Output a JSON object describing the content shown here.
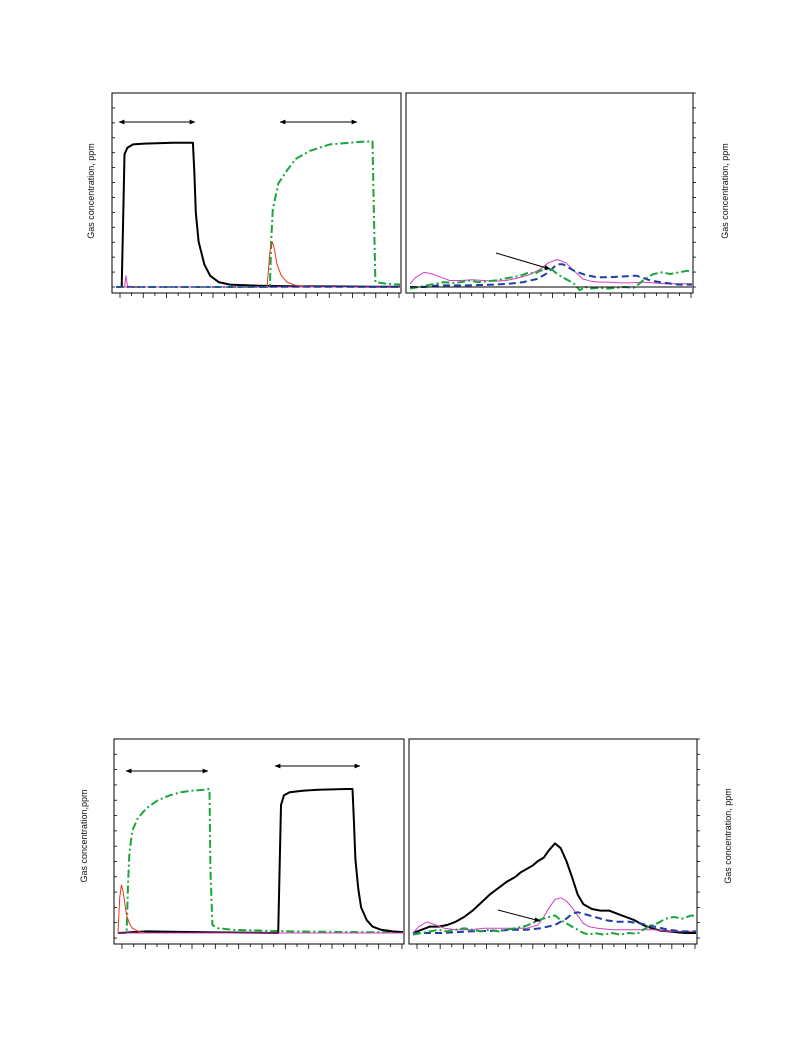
{
  "figure": {
    "ylabel_text": "Gas concentration, ppm"
  },
  "colors": {
    "black": "#000000",
    "green": "#1aa53a",
    "red": "#e8361c",
    "magenta": "#d23fbf",
    "blue": "#1f3fa8"
  },
  "chart_data": [
    {
      "type": "line",
      "panel": "top-left",
      "title": "",
      "xlabel": "",
      "ylabel": "Gas concentration, ppm",
      "xlim": [
        0,
        100
      ],
      "ylim": [
        0,
        100
      ],
      "grid": false,
      "series": [
        {
          "color": "black",
          "style": "solid",
          "width": 2,
          "x": [
            0,
            2,
            2.5,
            3,
            4,
            6,
            10,
            20,
            27,
            27.5,
            28,
            29,
            31,
            33,
            36,
            40,
            50,
            60,
            70,
            80,
            90,
            100
          ],
          "y": [
            0,
            0,
            40,
            82,
            86,
            88,
            88.5,
            89,
            89,
            70,
            46,
            28,
            14,
            7,
            3,
            1.5,
            0.8,
            0.5,
            0.4,
            0.3,
            0.2,
            0.2
          ]
        },
        {
          "color": "green",
          "style": "dashdot",
          "width": 2,
          "x": [
            0,
            10,
            20,
            30,
            40,
            54,
            54.5,
            55,
            57,
            60,
            63,
            68,
            75,
            85,
            90,
            90.5,
            91,
            95,
            100
          ],
          "y": [
            0,
            0,
            0,
            0,
            0,
            0,
            30,
            48,
            64,
            72,
            79,
            84,
            88,
            89.5,
            90,
            45,
            3,
            2,
            1.5
          ]
        },
        {
          "color": "red",
          "style": "solid",
          "width": 1,
          "x": [
            0,
            53,
            54,
            54.8,
            55.5,
            56.5,
            58,
            60,
            63,
            67,
            72,
            100
          ],
          "y": [
            0,
            0,
            22,
            28,
            24,
            14,
            7,
            3,
            1,
            0.3,
            0,
            0
          ]
        },
        {
          "color": "magenta",
          "style": "solid",
          "width": 1,
          "x": [
            0,
            3,
            3.5,
            4,
            10,
            30,
            50,
            70,
            100
          ],
          "y": [
            0,
            0,
            7,
            0.5,
            0,
            0,
            0,
            0,
            0
          ]
        },
        {
          "color": "blue",
          "style": "dashed",
          "width": 1.5,
          "x": [
            0,
            30,
            60,
            100
          ],
          "y": [
            0,
            0,
            0,
            0
          ]
        }
      ]
    },
    {
      "type": "line",
      "panel": "top-right",
      "title": "",
      "xlabel": "",
      "ylabel": "Gas concentration, ppm",
      "xlim": [
        0,
        100
      ],
      "ylim": [
        0,
        100
      ],
      "grid": false,
      "series": [
        {
          "color": "magenta",
          "style": "solid",
          "width": 1,
          "x": [
            0,
            2,
            5,
            8,
            11,
            14,
            18,
            22,
            26,
            30,
            34,
            38,
            42,
            46,
            49,
            52,
            55,
            58,
            61,
            64,
            67,
            70,
            74,
            78,
            82,
            86,
            90,
            94,
            98,
            100
          ],
          "y": [
            2,
            6,
            9,
            8,
            6,
            4,
            4,
            4.5,
            4,
            3.5,
            4,
            5.5,
            7.5,
            11,
            15,
            17,
            15,
            10,
            5,
            3.5,
            3,
            3,
            2.5,
            2.5,
            3,
            2.5,
            2,
            2,
            2,
            2
          ]
        },
        {
          "color": "blue",
          "style": "dashed",
          "width": 2,
          "x": [
            0,
            5,
            10,
            20,
            30,
            35,
            40,
            45,
            48,
            50,
            52,
            54,
            56,
            58,
            62,
            66,
            70,
            75,
            80,
            85,
            90,
            95,
            100
          ],
          "y": [
            0,
            0,
            1,
            1,
            1.5,
            2,
            3,
            5,
            8,
            11,
            14,
            14,
            12,
            10,
            7.5,
            6,
            6,
            6.5,
            7,
            4,
            2.5,
            1.5,
            1.5
          ]
        },
        {
          "color": "green",
          "style": "dashdot",
          "width": 2,
          "x": [
            0,
            3,
            6,
            9,
            12,
            15,
            18,
            21,
            24,
            27,
            30,
            33,
            36,
            39,
            42,
            44,
            46,
            48,
            50,
            52,
            54,
            56,
            58,
            60,
            62,
            64,
            67,
            70,
            73,
            76,
            79,
            81,
            83,
            86,
            89,
            92,
            95,
            98,
            100
          ],
          "y": [
            -1,
            0,
            1,
            2,
            3,
            2.5,
            3,
            4,
            3,
            3.5,
            4,
            5,
            6,
            7,
            9,
            8,
            10,
            11,
            11,
            8,
            6,
            4,
            2,
            -2,
            0,
            -1,
            -0.5,
            -1,
            -0.5,
            0,
            -0.5,
            2,
            5,
            8,
            9,
            8,
            9,
            10,
            9
          ]
        },
        {
          "color": "black",
          "style": "solid",
          "width": 1,
          "x": [
            0,
            20,
            50,
            80,
            100
          ],
          "y": [
            0,
            0,
            0,
            0,
            0
          ]
        }
      ]
    },
    {
      "type": "line",
      "panel": "bottom-left",
      "title": "",
      "xlabel": "",
      "ylabel": "Gas concentration,ppm",
      "xlim": [
        0,
        100
      ],
      "ylim": [
        0,
        100
      ],
      "grid": false,
      "series": [
        {
          "color": "green",
          "style": "dashdot",
          "width": 2,
          "x": [
            0,
            3,
            3.5,
            4,
            5,
            7,
            10,
            14,
            18,
            22,
            26,
            30,
            32,
            32.3,
            33,
            35,
            40,
            50,
            60,
            70,
            80,
            90,
            100
          ],
          "y": [
            0,
            0,
            30,
            50,
            64,
            72,
            78,
            83,
            86,
            88,
            89,
            89.5,
            90,
            40,
            5,
            3,
            2,
            1.5,
            1,
            0.8,
            0.6,
            0.5,
            0.5
          ]
        },
        {
          "color": "black",
          "style": "solid",
          "width": 2,
          "x": [
            0,
            10,
            30,
            55,
            56,
            56.5,
            57,
            58,
            60,
            65,
            70,
            80,
            82,
            82.5,
            83,
            84,
            85,
            87,
            89,
            92,
            96,
            100
          ],
          "y": [
            0,
            1,
            0.5,
            0,
            0,
            40,
            80,
            86,
            88,
            89,
            89.5,
            90,
            90,
            70,
            46,
            28,
            16,
            8,
            4,
            2,
            1,
            0.5
          ]
        },
        {
          "color": "red",
          "style": "solid",
          "width": 1,
          "x": [
            0,
            0.6,
            1.2,
            1.8,
            2.4,
            3,
            4,
            5,
            6.5,
            8,
            10,
            100
          ],
          "y": [
            0,
            22,
            30,
            26,
            18,
            11,
            6,
            3,
            1.5,
            0.5,
            0,
            0
          ]
        },
        {
          "color": "magenta",
          "style": "solid",
          "width": 1,
          "x": [
            0,
            20,
            50,
            100
          ],
          "y": [
            0,
            0,
            0,
            0
          ]
        }
      ]
    },
    {
      "type": "line",
      "panel": "bottom-right",
      "title": "",
      "xlabel": "",
      "ylabel": "Gas concentration, ppm",
      "xlim": [
        0,
        100
      ],
      "ylim": [
        0,
        100
      ],
      "grid": false,
      "series": [
        {
          "color": "black",
          "style": "solid",
          "width": 2,
          "x": [
            0,
            3,
            6,
            9,
            12,
            15,
            18,
            21,
            24,
            27,
            30,
            33,
            36,
            38,
            40,
            42,
            44,
            46,
            48,
            50,
            52,
            54,
            56,
            58,
            60,
            63,
            66,
            69,
            72,
            75,
            78,
            81,
            84,
            87,
            90,
            93,
            96,
            100
          ],
          "y": [
            0,
            2,
            4,
            4,
            5,
            7,
            10,
            14,
            19,
            24,
            28,
            32,
            35,
            38,
            40,
            42,
            45,
            47,
            52,
            56,
            53,
            45,
            35,
            24,
            18,
            15,
            14,
            14,
            12,
            10,
            8,
            5,
            3,
            1.5,
            1,
            0.5,
            0,
            0
          ]
        },
        {
          "color": "magenta",
          "style": "solid",
          "width": 1,
          "x": [
            0,
            2,
            5,
            8,
            11,
            15,
            20,
            25,
            30,
            35,
            40,
            44,
            46,
            48,
            50,
            52,
            54,
            56,
            58,
            60,
            62,
            65,
            70,
            75,
            80,
            85,
            90,
            95,
            100
          ],
          "y": [
            0,
            4,
            7,
            5,
            3,
            2,
            2,
            3,
            3,
            3,
            3,
            5,
            10,
            16,
            21,
            22,
            20,
            16,
            11,
            6,
            4,
            3,
            2,
            2,
            2,
            2,
            1,
            1,
            1
          ]
        },
        {
          "color": "blue",
          "style": "dashed",
          "width": 2,
          "x": [
            0,
            10,
            20,
            30,
            35,
            40,
            45,
            50,
            52,
            54,
            56,
            58,
            60,
            64,
            68,
            72,
            76,
            80,
            85,
            90,
            95,
            100
          ],
          "y": [
            0,
            0,
            1,
            1.5,
            2,
            2,
            3,
            5,
            7,
            9,
            12,
            13,
            12,
            10,
            8,
            7,
            7,
            6,
            4,
            2,
            1,
            1
          ]
        },
        {
          "color": "green",
          "style": "dashdot",
          "width": 2,
          "x": [
            0,
            3,
            6,
            9,
            12,
            15,
            18,
            21,
            24,
            27,
            30,
            33,
            36,
            39,
            42,
            44,
            46,
            48,
            50,
            52,
            54,
            56,
            58,
            60,
            62,
            64,
            67,
            70,
            73,
            76,
            79,
            81,
            83,
            86,
            89,
            92,
            95,
            98,
            100
          ],
          "y": [
            -1,
            0,
            1,
            2,
            1,
            2,
            3,
            2,
            1,
            2,
            1,
            2,
            3,
            4,
            6,
            8,
            9,
            10,
            11,
            8,
            6,
            4,
            2,
            0,
            -1,
            0,
            -1,
            0,
            -1,
            0,
            -0.5,
            2,
            4,
            6,
            9,
            10,
            9,
            11,
            10
          ]
        }
      ]
    }
  ]
}
